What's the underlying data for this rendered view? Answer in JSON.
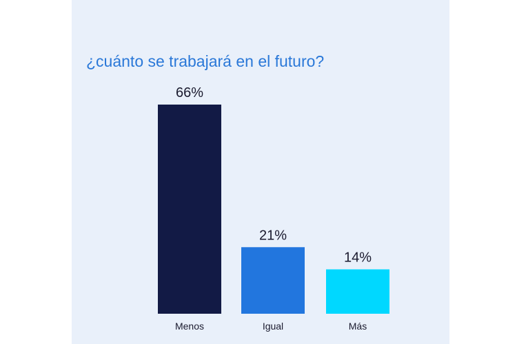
{
  "chart_data": {
    "type": "bar",
    "title": "¿cuánto se trabajará en el futuro?",
    "categories": [
      "Menos",
      "Igual",
      "Más"
    ],
    "values": [
      66,
      21,
      14
    ],
    "value_labels": [
      "66%",
      "21%",
      "14%"
    ],
    "colors": [
      "#121a45",
      "#2276de",
      "#00d8ff"
    ],
    "ylim": [
      0,
      70
    ],
    "grid": false,
    "legend": "none"
  }
}
